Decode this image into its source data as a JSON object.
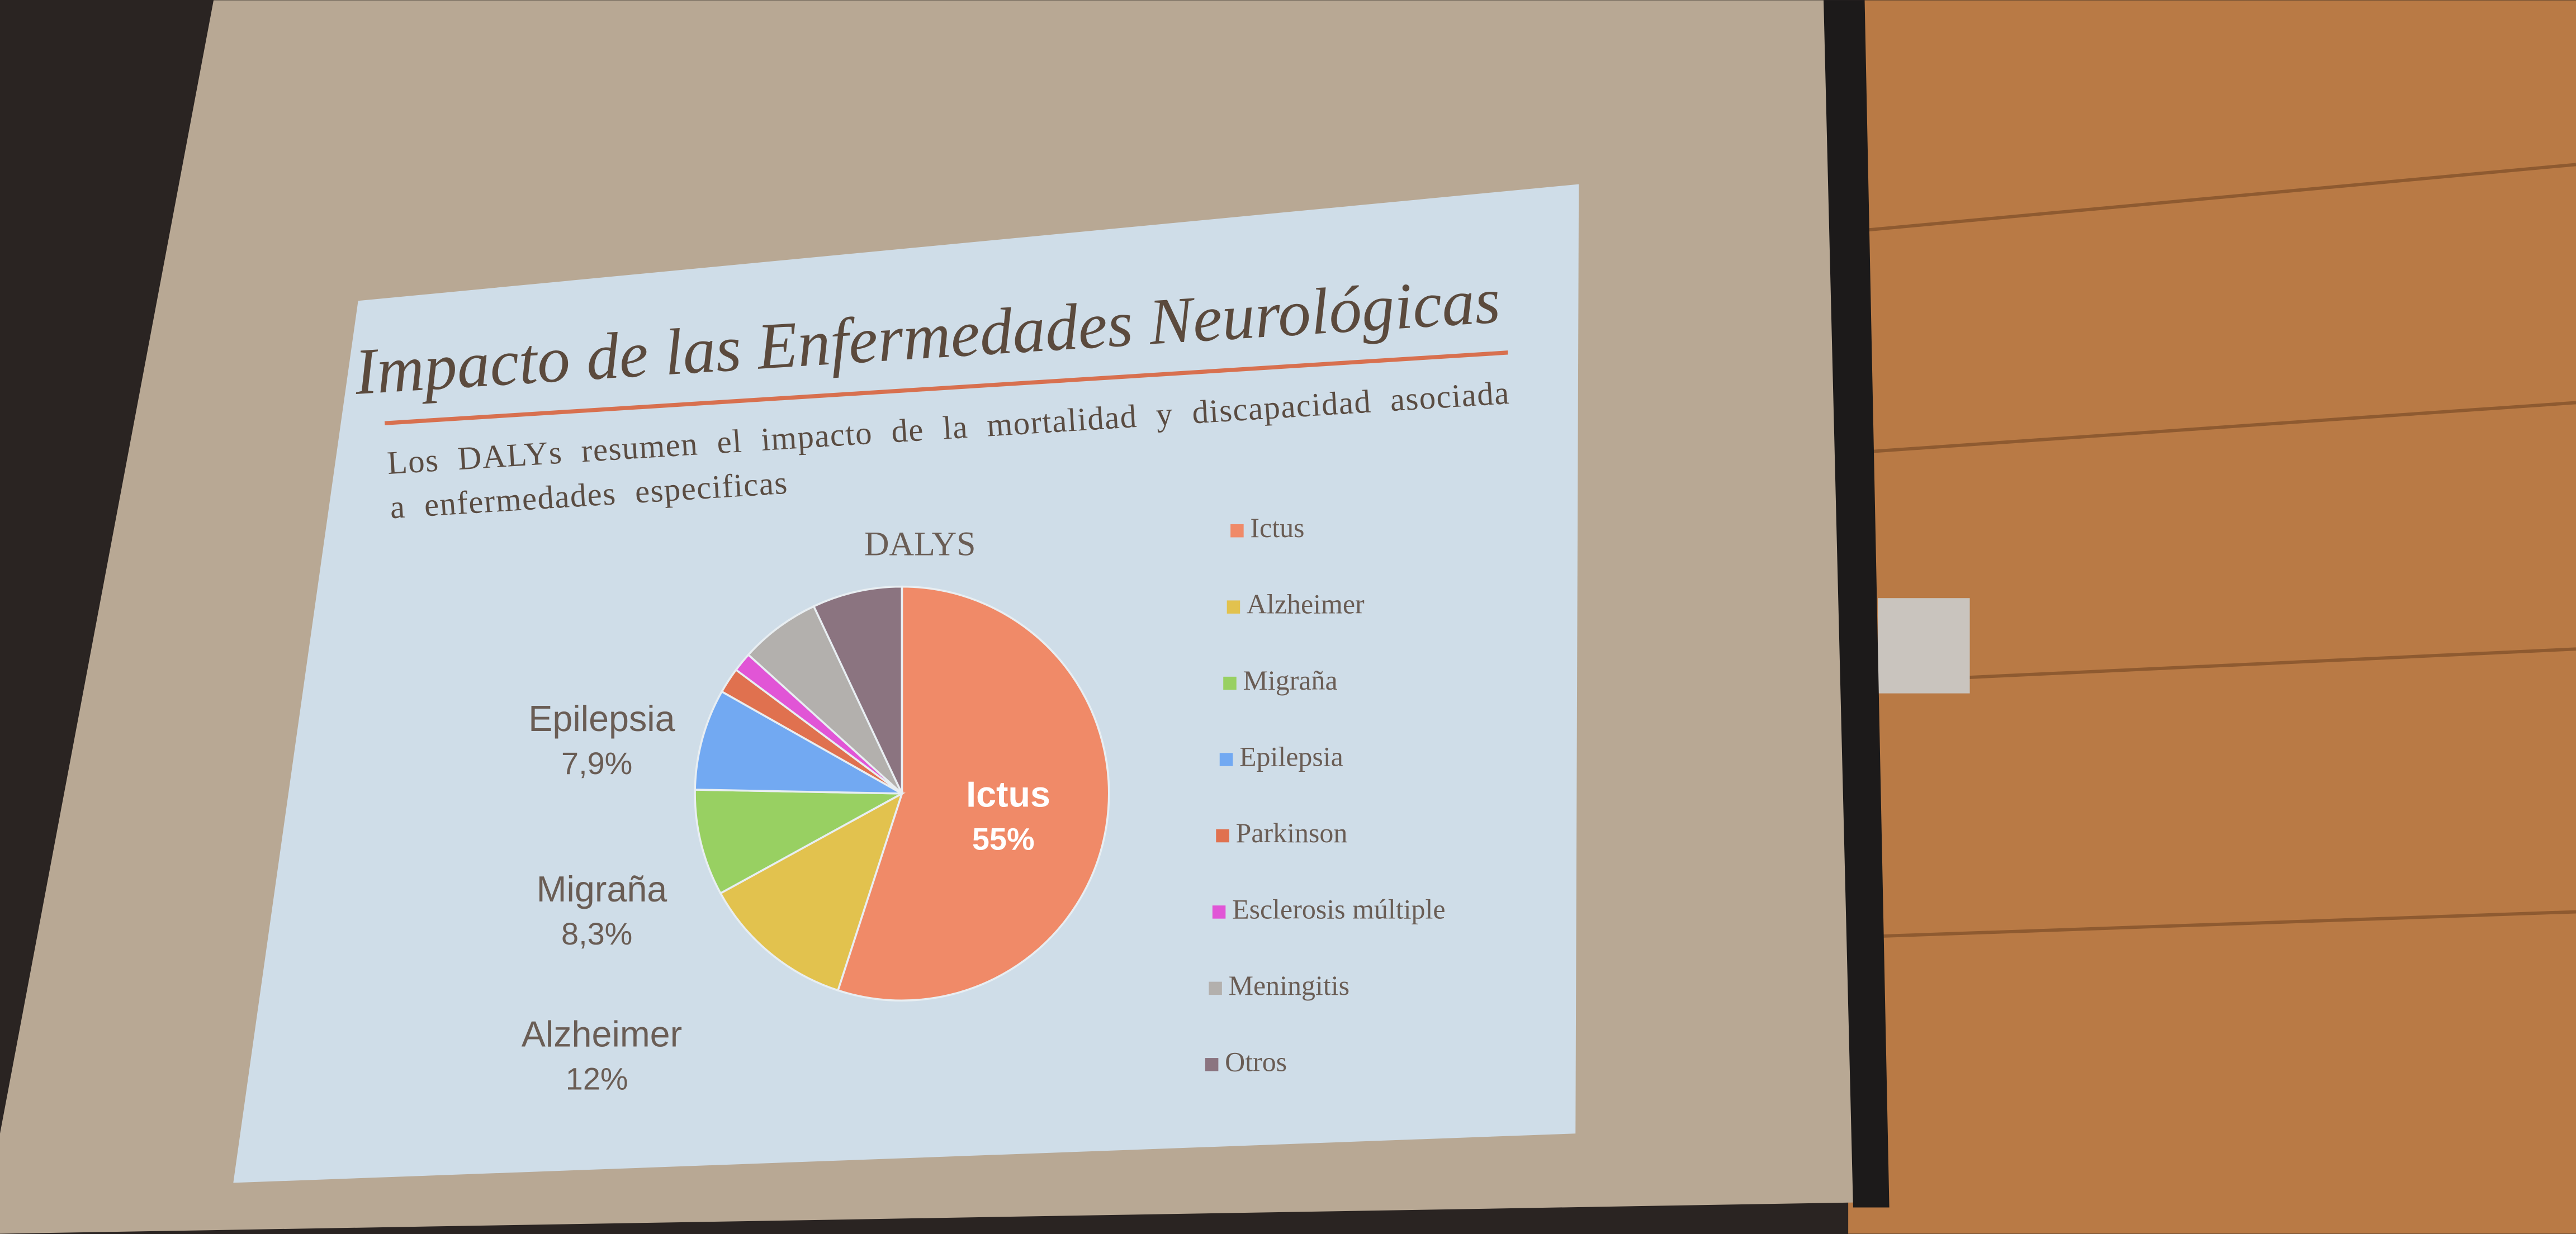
{
  "chart_data": {
    "type": "pie",
    "slide_title": "Impacto de las Enfermedades Neurológicas",
    "subtitle": "Los DALYs resumen el impacto de la mortalidad y discapacidad asociada a enfermedades especificas",
    "title": "DALYS",
    "categories": [
      "Ictus",
      "Alzheimer",
      "Migraña",
      "Epilepsia",
      "Parkinson",
      "Esclerosis múltiple",
      "Meningitis",
      "Otros"
    ],
    "values": [
      55,
      12,
      8.3,
      7.9,
      2,
      1.5,
      6.3,
      7
    ],
    "value_labels": [
      "55%",
      "12%",
      "8,3%",
      "7,9%",
      null,
      null,
      null,
      null
    ],
    "colors": [
      "#f08a68",
      "#e2c24e",
      "#98d062",
      "#72a9f2",
      "#e0714f",
      "#e155d6",
      "#b3b0ad",
      "#8b7480"
    ],
    "legend": "right"
  }
}
